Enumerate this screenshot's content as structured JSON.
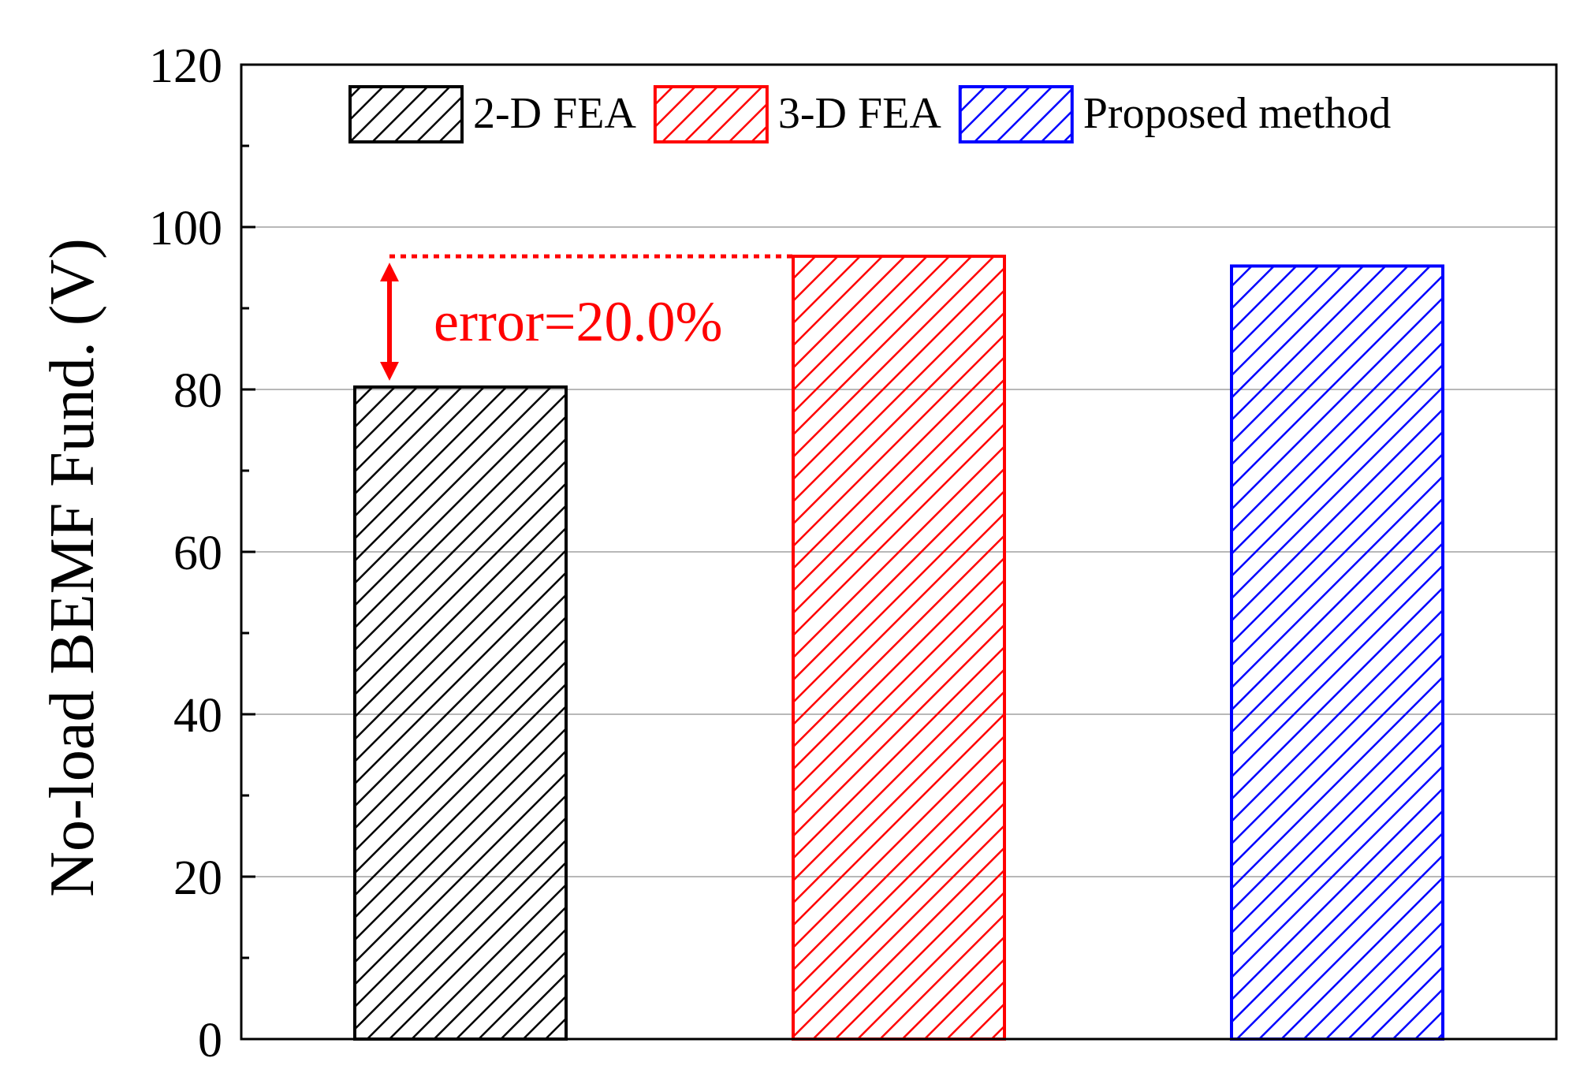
{
  "chart_data": {
    "type": "bar",
    "ylabel": "No-load BEMF Fund. (V)",
    "xlabel": "",
    "ylim": [
      0,
      120
    ],
    "yticks": [
      0,
      20,
      40,
      60,
      80,
      100,
      120
    ],
    "y_minor_step": 10,
    "grid": true,
    "legend_position": "top",
    "series": [
      {
        "name": "2-D FEA",
        "value": 80.3,
        "color": "#000000",
        "hatch": "diagonal"
      },
      {
        "name": "3-D FEA",
        "value": 96.4,
        "color": "#ff0000",
        "hatch": "diagonal"
      },
      {
        "name": "Proposed method",
        "value": 95.2,
        "color": "#0000ff",
        "hatch": "diagonal"
      }
    ],
    "annotation": {
      "text": "error=20.0%",
      "from_value": 80.3,
      "to_value": 96.4,
      "color": "#ff0000"
    }
  }
}
